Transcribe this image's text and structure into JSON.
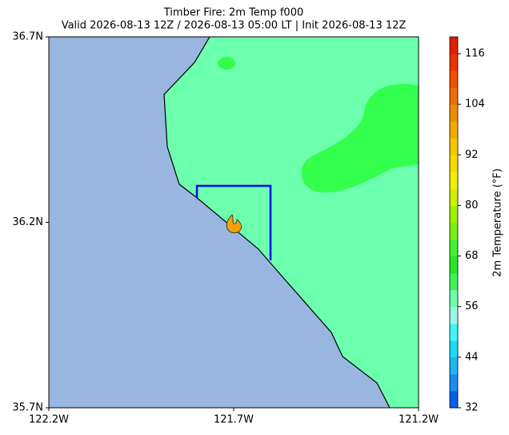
{
  "map": {
    "title": "Timber Fire: 2m Temp f000",
    "subtitle": "Valid 2026-08-13 12Z / 2026-08-13 05:00 LT | Init 2026-08-13 12Z",
    "xlim": [
      -122.2,
      -121.2
    ],
    "ylim": [
      35.7,
      36.7
    ],
    "xticks": [
      {
        "value": -122.2,
        "label": "122.2W"
      },
      {
        "value": -121.7,
        "label": "121.7W"
      },
      {
        "value": -121.2,
        "label": "121.2W"
      }
    ],
    "yticks": [
      {
        "value": 35.7,
        "label": "35.7N"
      },
      {
        "value": 36.2,
        "label": "36.2N"
      },
      {
        "value": 36.7,
        "label": "36.7N"
      }
    ]
  },
  "colorbar": {
    "label": "2m Temperature (°F)",
    "range": [
      32,
      120
    ],
    "ticks": [
      32,
      44,
      56,
      68,
      80,
      92,
      104,
      116
    ],
    "colors": [
      "#0a5fe6",
      "#1a8cf0",
      "#20b4f5",
      "#19dcf5",
      "#40f5f5",
      "#9cf8e8",
      "#6effae",
      "#3cf55a",
      "#28e628",
      "#46f032",
      "#78f014",
      "#a0f000",
      "#d2f000",
      "#f0f000",
      "#f5dc00",
      "#f5c800",
      "#f5aa00",
      "#f08c00",
      "#f06e00",
      "#f05000",
      "#ec3200",
      "#e61e00"
    ]
  }
}
